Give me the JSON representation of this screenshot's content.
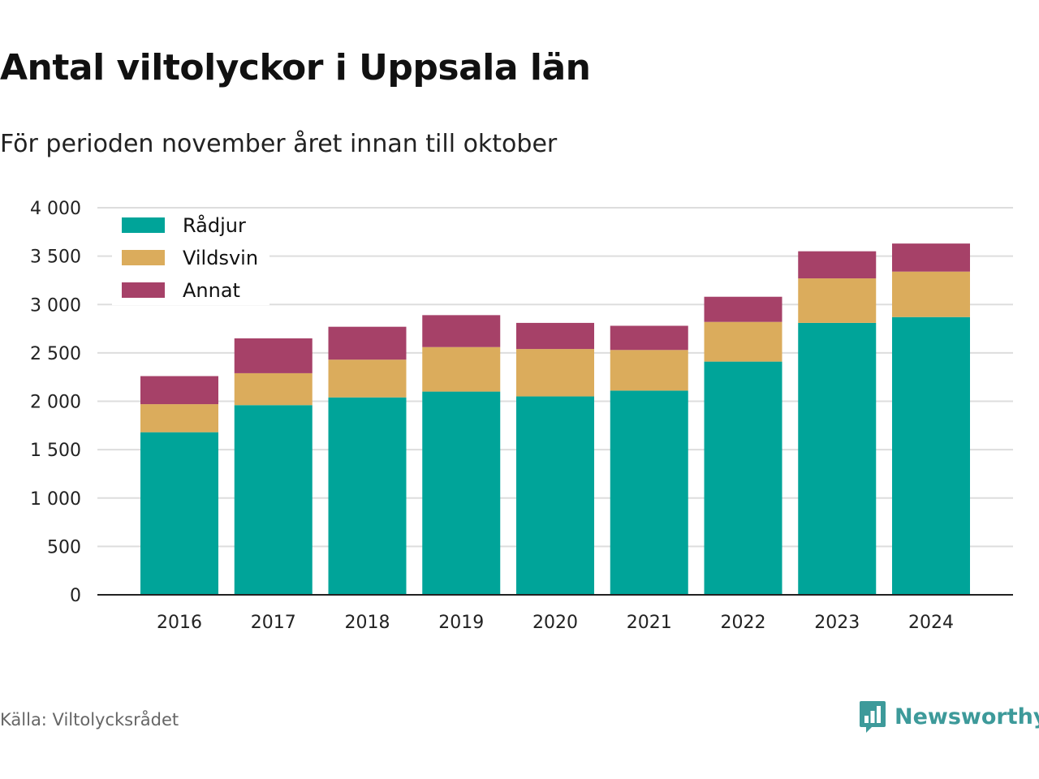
{
  "header": {
    "title": "Antal viltolyckor i Uppsala län",
    "subtitle": "För perioden november året innan till oktober"
  },
  "footer": {
    "source": "Källa: Viltolycksrådet",
    "brand": "Newsworthy",
    "brand_icon": "bar-chart-speech-bubble-icon",
    "brand_color": "#3d9a9a"
  },
  "chart_data": {
    "type": "bar",
    "stacked": true,
    "categories": [
      "2016",
      "2017",
      "2018",
      "2019",
      "2020",
      "2021",
      "2022",
      "2023",
      "2024"
    ],
    "series": [
      {
        "name": "Rådjur",
        "color": "#00a499",
        "values": [
          1680,
          1960,
          2040,
          2100,
          2050,
          2110,
          2410,
          2810,
          2870
        ]
      },
      {
        "name": "Vildsvin",
        "color": "#dbac5c",
        "values": [
          290,
          330,
          390,
          460,
          490,
          420,
          410,
          460,
          470
        ]
      },
      {
        "name": "Annat",
        "color": "#a64168",
        "values": [
          290,
          360,
          340,
          330,
          270,
          250,
          260,
          280,
          290
        ]
      }
    ],
    "ylim": [
      0,
      4000
    ],
    "yticks": [
      0,
      500,
      1000,
      1500,
      2000,
      2500,
      3000,
      3500,
      4000
    ],
    "ytick_labels": [
      "0",
      "500",
      "1 000",
      "1 500",
      "2 000",
      "2 500",
      "3 000",
      "3 500",
      "4 000"
    ],
    "grid": true,
    "legend": "top-left"
  }
}
